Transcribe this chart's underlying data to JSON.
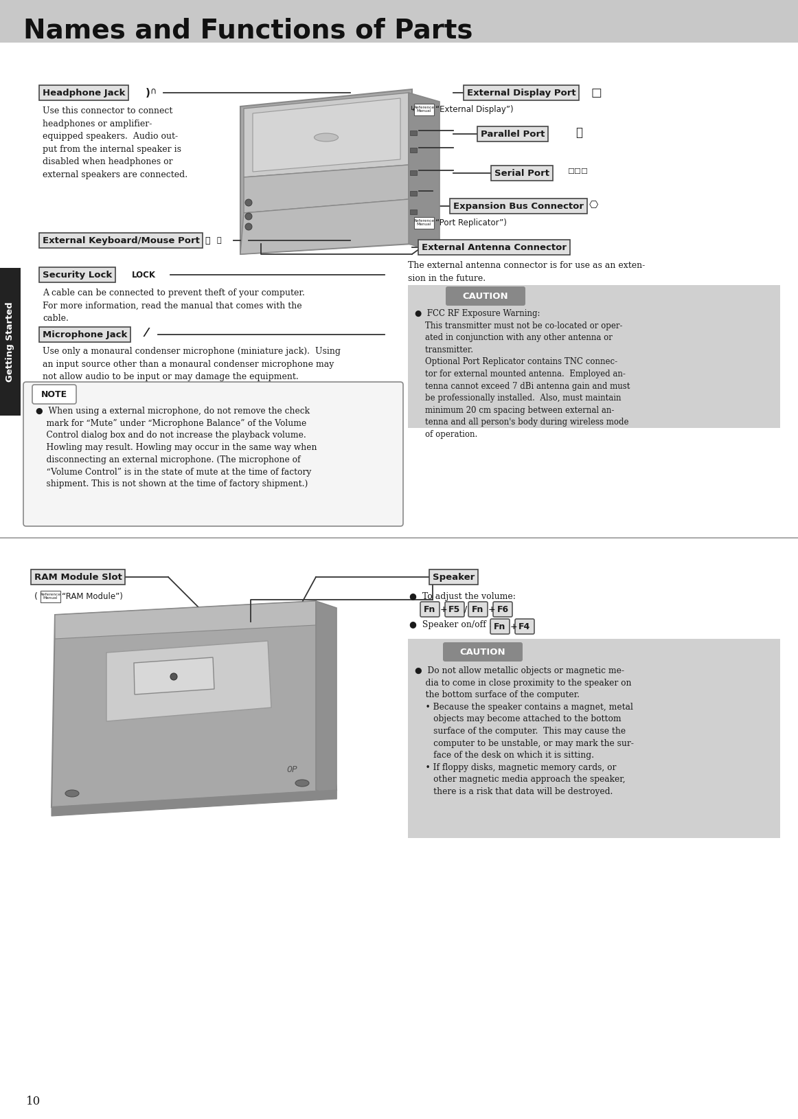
{
  "title": "Names and Functions of Parts",
  "page_number": "10",
  "bg_color": "#ffffff",
  "header_bg": "#c8c8c8",
  "header_text_color": "#111111",
  "sidebar_bg": "#222222",
  "sidebar_text": "Getting Started",
  "body_text_color": "#1a1a1a",
  "label_box_bg": "#e0e0e0",
  "label_box_border": "#444444",
  "caution_bg": "#d0d0d0",
  "caution_title_bg": "#888888",
  "note_bg": "#f5f5f5",
  "note_border": "#888888",
  "key_bg": "#dddddd",
  "key_border": "#555555",
  "line_color": "#333333",
  "divider_color": "#999999",
  "laptop_body": "#a8a8a8",
  "laptop_mid": "#bbbbbb",
  "laptop_light": "#cccccc",
  "laptop_dark": "#888888"
}
